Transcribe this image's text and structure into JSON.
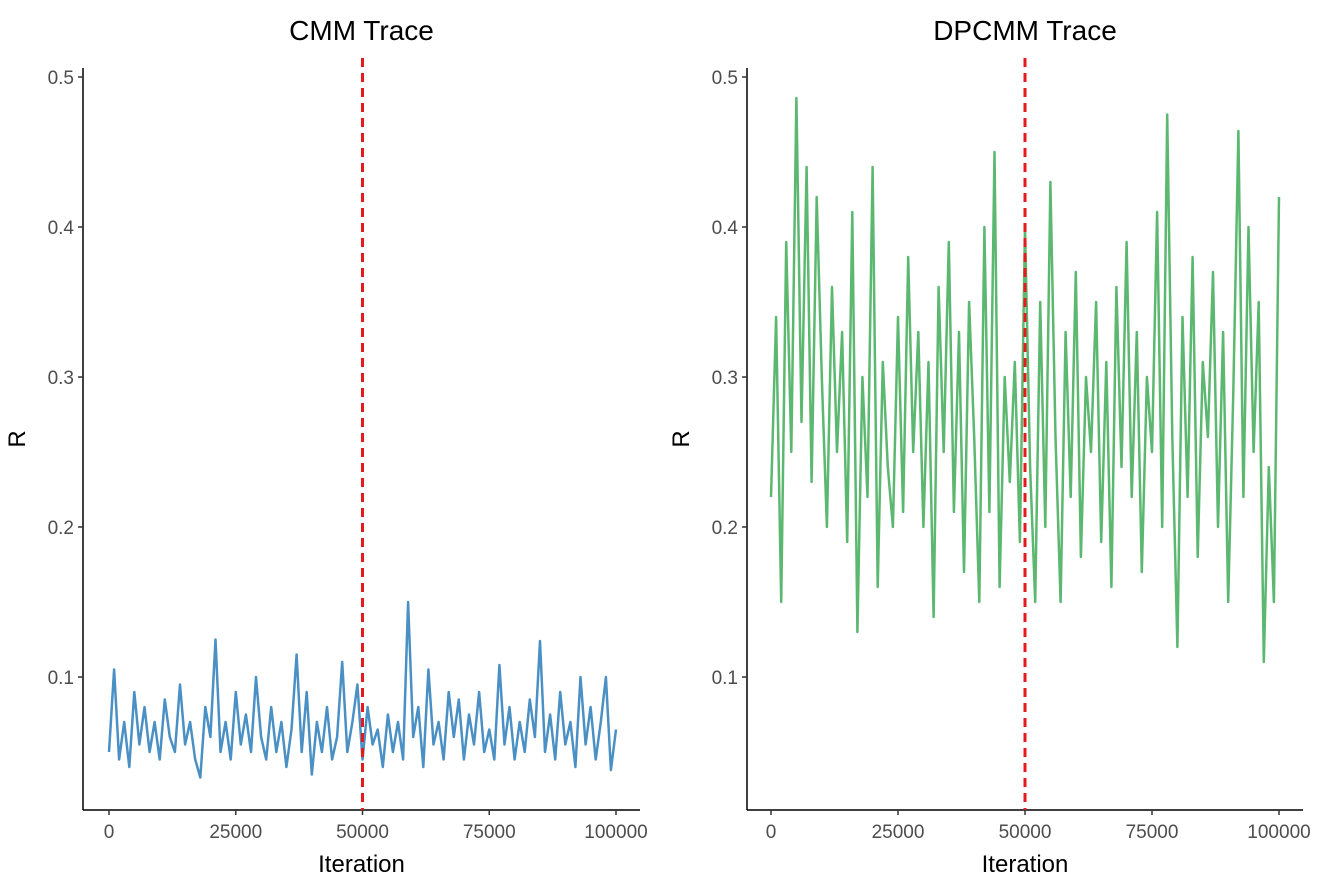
{
  "chart_data": [
    {
      "type": "line",
      "title": "CMM Trace",
      "xlabel": "Iteration",
      "ylabel": "R",
      "xlim": [
        0,
        100000
      ],
      "ylim": [
        0.01,
        0.51
      ],
      "xticks": [
        "0",
        "25000",
        "50000",
        "75000",
        "100000"
      ],
      "yticks": [
        "0.1",
        "0.2",
        "0.3",
        "0.4",
        "0.5"
      ],
      "grid": false,
      "color": "#4A90C4",
      "vline": {
        "x": 50000,
        "color": "#E41A1C",
        "style": "dashed"
      },
      "series": [
        {
          "values": [
            0.05,
            0.105,
            0.045,
            0.07,
            0.04,
            0.09,
            0.055,
            0.08,
            0.05,
            0.07,
            0.045,
            0.085,
            0.06,
            0.05,
            0.095,
            0.055,
            0.07,
            0.045,
            0.033,
            0.08,
            0.06,
            0.125,
            0.05,
            0.07,
            0.045,
            0.09,
            0.055,
            0.075,
            0.05,
            0.1,
            0.06,
            0.045,
            0.08,
            0.05,
            0.07,
            0.04,
            0.065,
            0.115,
            0.05,
            0.09,
            0.035,
            0.07,
            0.05,
            0.08,
            0.045,
            0.06,
            0.11,
            0.05,
            0.07,
            0.095,
            0.045,
            0.08,
            0.055,
            0.065,
            0.04,
            0.075,
            0.05,
            0.07,
            0.045,
            0.15,
            0.06,
            0.08,
            0.04,
            0.105,
            0.055,
            0.07,
            0.045,
            0.09,
            0.06,
            0.085,
            0.045,
            0.075,
            0.055,
            0.09,
            0.05,
            0.065,
            0.045,
            0.108,
            0.055,
            0.08,
            0.045,
            0.07,
            0.05,
            0.085,
            0.06,
            0.124,
            0.05,
            0.075,
            0.045,
            0.09,
            0.055,
            0.07,
            0.04,
            0.1,
            0.055,
            0.08,
            0.045,
            0.07,
            0.1,
            0.038,
            0.065
          ]
        }
      ]
    },
    {
      "type": "line",
      "title": "DPCMM Trace",
      "xlabel": "Iteration",
      "ylabel": "R",
      "xlim": [
        0,
        100000
      ],
      "ylim": [
        0.01,
        0.51
      ],
      "xticks": [
        "0",
        "25000",
        "50000",
        "75000",
        "100000"
      ],
      "yticks": [
        "0.1",
        "0.2",
        "0.3",
        "0.4",
        "0.5"
      ],
      "grid": false,
      "color": "#5CB870",
      "vline": {
        "x": 50000,
        "color": "#E41A1C",
        "style": "dashed"
      },
      "series": [
        {
          "values": [
            0.22,
            0.34,
            0.15,
            0.39,
            0.25,
            0.486,
            0.27,
            0.44,
            0.23,
            0.42,
            0.3,
            0.2,
            0.36,
            0.25,
            0.33,
            0.19,
            0.41,
            0.13,
            0.3,
            0.22,
            0.44,
            0.16,
            0.31,
            0.24,
            0.2,
            0.34,
            0.21,
            0.38,
            0.25,
            0.33,
            0.2,
            0.31,
            0.14,
            0.36,
            0.25,
            0.39,
            0.21,
            0.33,
            0.17,
            0.35,
            0.26,
            0.15,
            0.4,
            0.21,
            0.45,
            0.16,
            0.3,
            0.23,
            0.31,
            0.19,
            0.4,
            0.24,
            0.15,
            0.35,
            0.2,
            0.43,
            0.26,
            0.15,
            0.33,
            0.22,
            0.37,
            0.18,
            0.3,
            0.25,
            0.35,
            0.19,
            0.31,
            0.16,
            0.36,
            0.24,
            0.39,
            0.22,
            0.33,
            0.17,
            0.3,
            0.25,
            0.41,
            0.2,
            0.475,
            0.26,
            0.12,
            0.34,
            0.22,
            0.38,
            0.18,
            0.31,
            0.26,
            0.37,
            0.2,
            0.33,
            0.15,
            0.29,
            0.464,
            0.22,
            0.4,
            0.25,
            0.35,
            0.11,
            0.24,
            0.15,
            0.42
          ]
        }
      ]
    }
  ]
}
